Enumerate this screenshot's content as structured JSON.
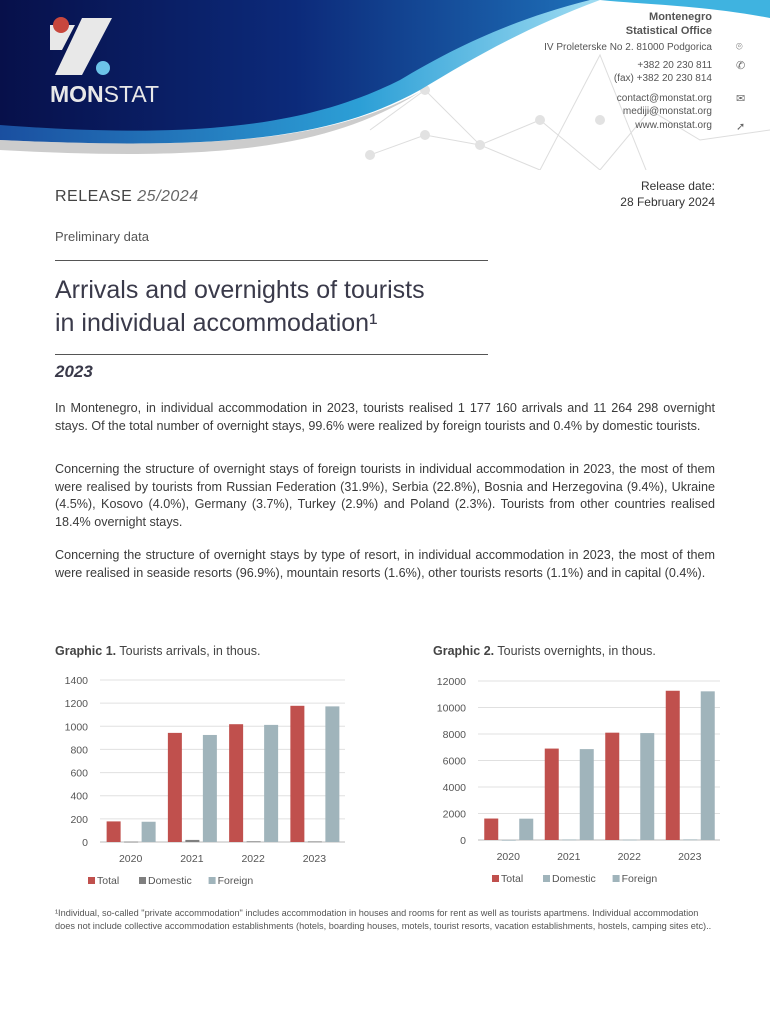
{
  "header": {
    "logo_text": "MONSTAT",
    "org_line1": "Montenegro",
    "org_line2": "Statistical Office",
    "address": "IV Proleterske No 2. 81000 Podgorica",
    "phone": "+382 20 230 811",
    "fax": "(fax) +382 20 230 814",
    "email1": "contact@monstat.org",
    "email2": "mediji@monstat.org",
    "website": "www.monstat.org",
    "icons": [
      "location-pin-icon",
      "phone-icon",
      "envelope-icon",
      "cursor-icon"
    ],
    "colors": {
      "navy": "#0a1a5c",
      "blue": "#1e6fb8",
      "cyan": "#3fb3e0",
      "logo_red": "#c8473d",
      "logo_blue": "#6cc3e8"
    }
  },
  "release": {
    "label": "RELEASE",
    "number": "25/2024",
    "date_label": "Release date:",
    "date": "28 February 2024"
  },
  "preliminary": "Preliminary data",
  "title_line1": "Arrivals and overnights of tourists",
  "title_line2": "in individual accommodation¹",
  "year": "2023",
  "paragraphs": [
    "In Montenegro, in individual accommodation in 2023, tourists realised 1 177 160 arrivals and 11 264 298 overnight stays. Of the total number of overnight stays, 99.6% were realized by foreign tourists and 0.4% by domestic tourists.",
    "Concerning the structure of overnight  stays of foreign tourists in individual accommodation in 2023, the most of them were realised by tourists from Russian Federation (31.9%), Serbia (22.8%), Bosnia and Herzegovina (9.4%), Ukraine (4.5%), Kosovo (4.0%), Germany (3.7%), Turkey (2.9%) and Poland (2.3%). Tourists from other countries realised 18.4% overnight stays.",
    "Concerning the structure of overnight stays by type of resort, in individual accommodation in 2023, the most of them were realised in seaside resorts (96.9%), mountain resorts (1.6%), other tourists resorts (1.1%) and in capital (0.4%)."
  ],
  "chart_data": [
    {
      "type": "bar",
      "title_bold": "Graphic 1.",
      "title": "Tourists arrivals, in thous.",
      "categories": [
        "2020",
        "2021",
        "2022",
        "2023"
      ],
      "ylim": [
        0,
        1400
      ],
      "yticks": [
        "0",
        "200",
        "400",
        "600",
        "800",
        "1000",
        "1200",
        "1400"
      ],
      "grid": true,
      "legend": "bottom",
      "series": [
        {
          "name": "Total",
          "color": "#c0504d",
          "values": [
            178,
            943,
            1018,
            1177
          ]
        },
        {
          "name": "Domestic",
          "color": "#7f7f7f",
          "values": [
            3,
            18,
            6,
            5
          ]
        },
        {
          "name": "Foreign",
          "color": "#a0b4bb",
          "values": [
            175,
            925,
            1012,
            1172
          ]
        }
      ]
    },
    {
      "type": "bar",
      "title_bold": "Graphic 2.",
      "title": "Tourists overnights, in thous.",
      "categories": [
        "2020",
        "2021",
        "2022",
        "2023"
      ],
      "ylim": [
        0,
        12000
      ],
      "yticks": [
        "0",
        "2000",
        "4000",
        "6000",
        "8000",
        "10000",
        "12000"
      ],
      "grid": true,
      "legend": "bottom",
      "series": [
        {
          "name": "Total",
          "color": "#c0504d",
          "values": [
            1620,
            6900,
            8100,
            11264
          ]
        },
        {
          "name": "Domestic",
          "color": "#a0b4bb",
          "values": [
            10,
            40,
            30,
            45
          ]
        },
        {
          "name": "Foreign",
          "color": "#a0b4bb",
          "values": [
            1610,
            6860,
            8070,
            11220
          ]
        }
      ]
    }
  ],
  "footnote": "¹Individual, so-called \"private accommodation\" includes accommodation in houses and rooms for rent as well as tourists apartmens. Individual accommodation does not include collective accommodation establishments (hotels, boarding houses, motels, tourist resorts, vacation establishments, hostels, camping sites etc).."
}
